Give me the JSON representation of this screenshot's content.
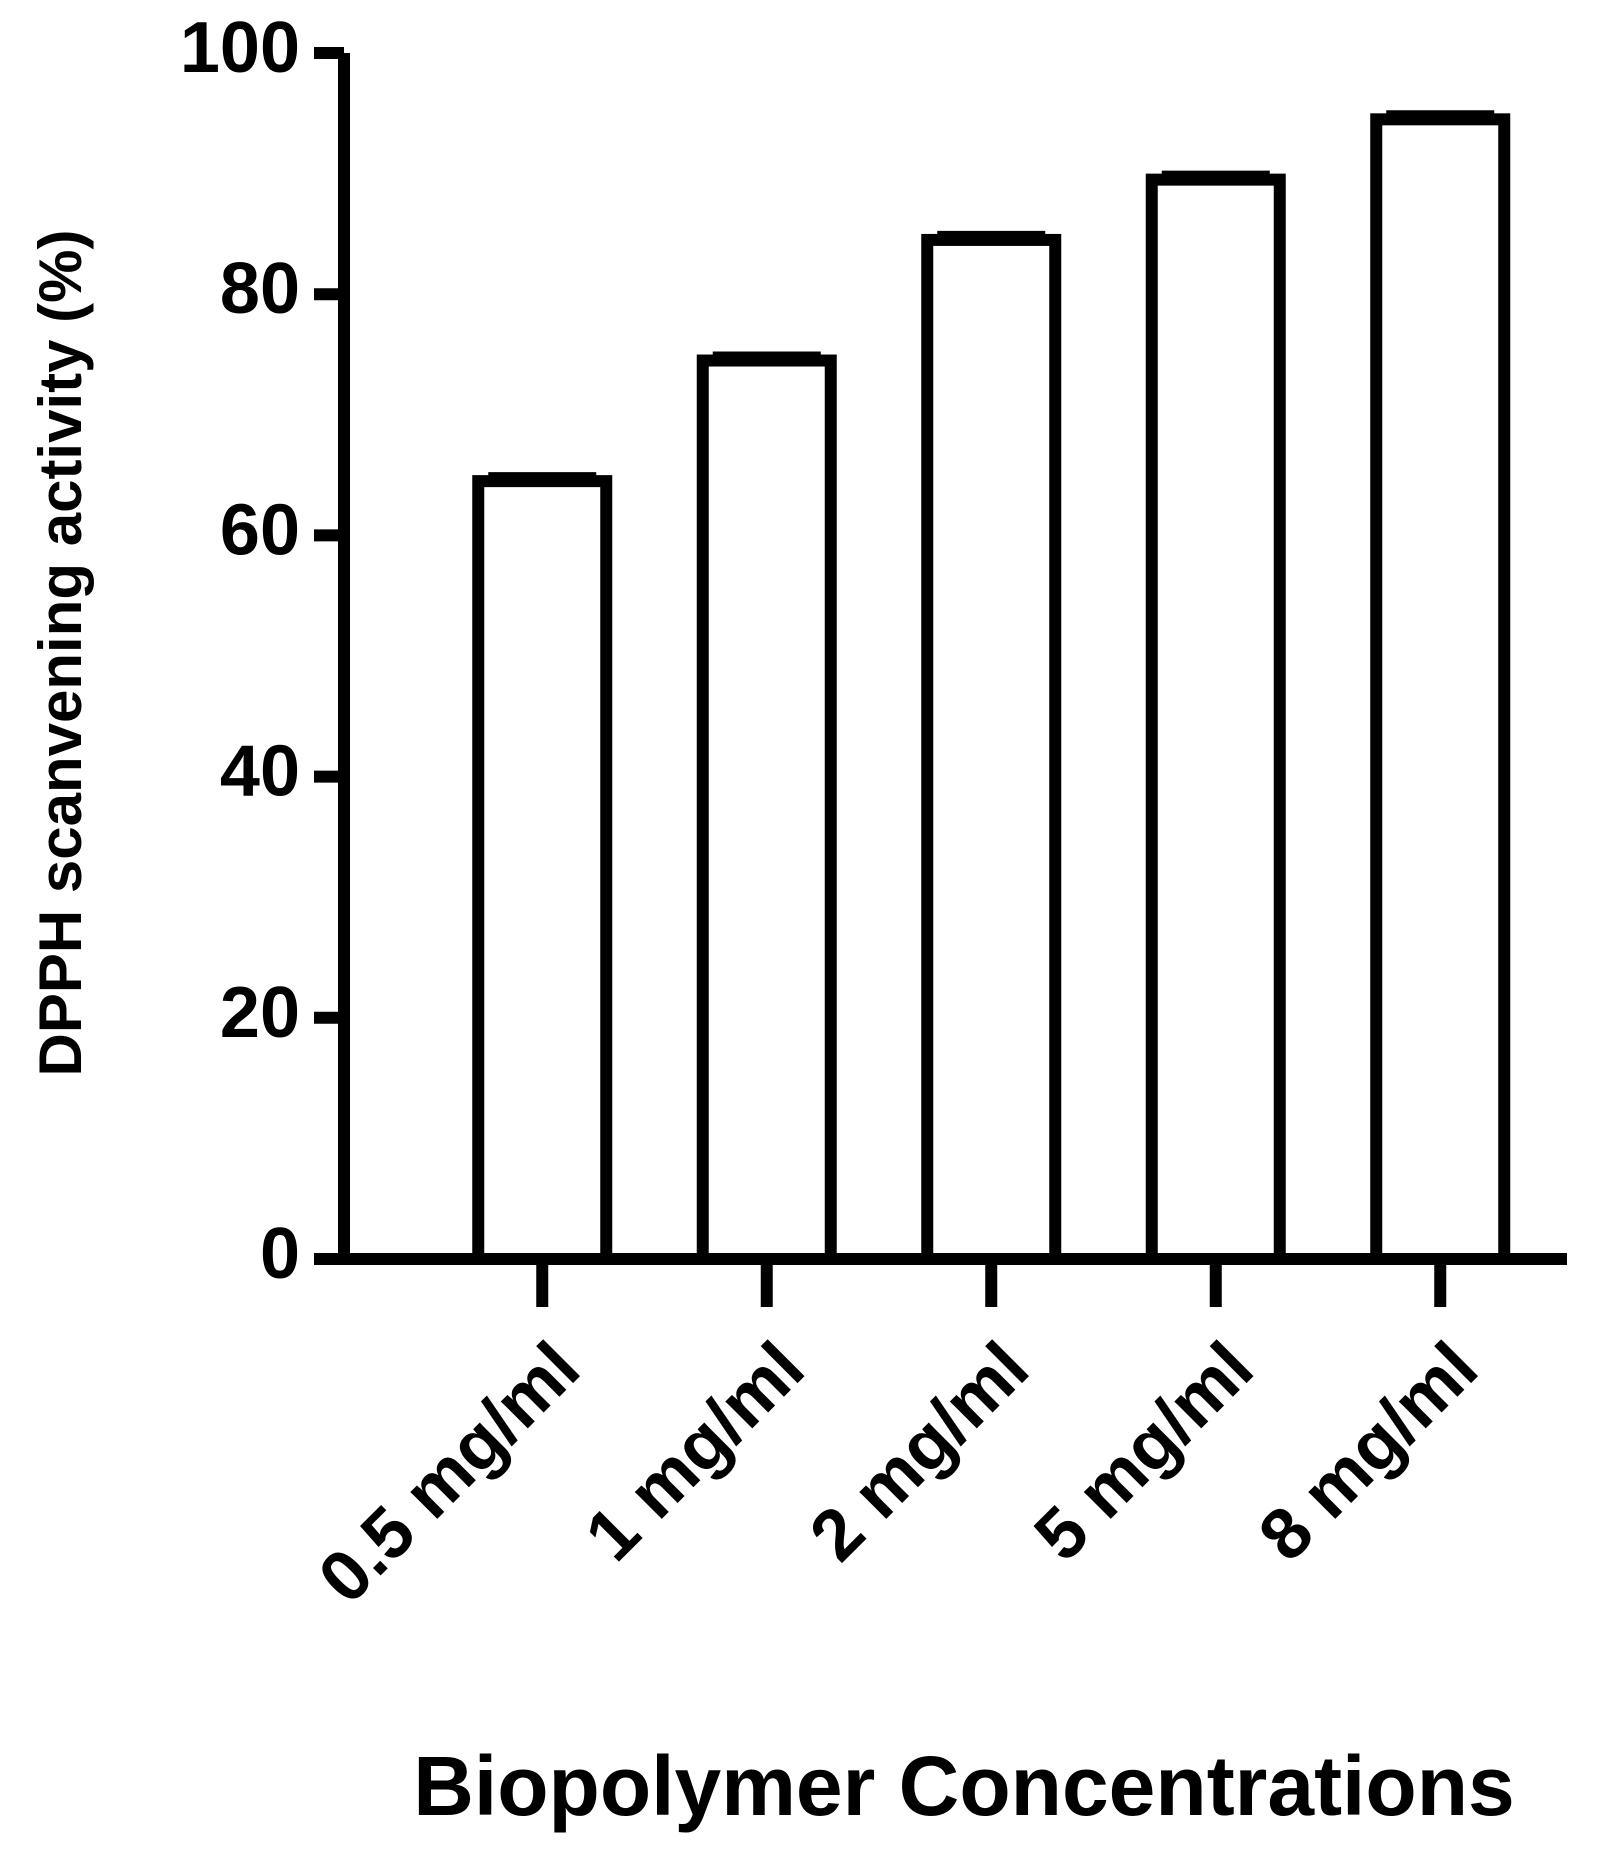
{
  "chart_data": {
    "type": "bar",
    "xlabel": "Biopolymer Concentrations",
    "ylabel": "DPPH scanvening activity (%)",
    "categories": [
      "0.5 mg/ml",
      "1 mg/ml",
      "2 mg/ml",
      "5 mg/ml",
      "8 mg/ml"
    ],
    "values": [
      64.5,
      74.5,
      84.5,
      89.5,
      94.5
    ],
    "errors": [
      0.5,
      0.5,
      0.5,
      0.5,
      0.5
    ],
    "color": "#000000",
    "ylim": [
      0,
      100
    ],
    "yticks": [
      0,
      20,
      40,
      60,
      80,
      100
    ],
    "grid": false
  }
}
